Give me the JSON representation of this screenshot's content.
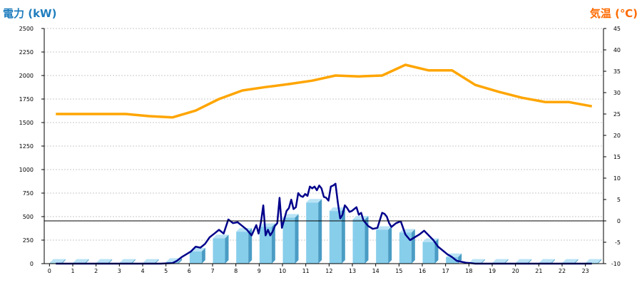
{
  "chart_data": {
    "type": "bar",
    "title": "",
    "left_axis": {
      "label": "電力 (kW)",
      "ylim": [
        0,
        2500
      ],
      "ticks": [
        "0",
        "250",
        "500",
        "750",
        "1000",
        "1250",
        "1500",
        "1750",
        "2000",
        "2250",
        "2500"
      ]
    },
    "right_axis": {
      "label": "気温 (℃)",
      "ylim": [
        -10,
        45
      ],
      "ticks": [
        "-10",
        "-5",
        "0",
        "5",
        "10",
        "15",
        "20",
        "25",
        "30",
        "35",
        "40",
        "45"
      ]
    },
    "categories": [
      "0",
      "1",
      "2",
      "3",
      "4",
      "5",
      "6",
      "7",
      "8",
      "9",
      "10",
      "11",
      "12",
      "13",
      "14",
      "15",
      "16",
      "17",
      "18",
      "19",
      "20",
      "21",
      "22",
      "23"
    ],
    "grid": true,
    "series": [
      {
        "type": "bar",
        "axis": "left",
        "values": [
          10,
          10,
          10,
          10,
          10,
          20,
          130,
          270,
          340,
          390,
          490,
          650,
          560,
          470,
          360,
          330,
          230,
          70,
          10,
          10,
          10,
          10,
          10,
          10
        ]
      },
      {
        "type": "line",
        "axis": "right",
        "values": [
          25.0,
          25.0,
          25.0,
          25.0,
          24.5,
          24.2,
          25.8,
          28.5,
          30.5,
          31.3,
          32.0,
          32.8,
          34.0,
          33.8,
          34.0,
          36.5,
          35.2,
          35.2,
          31.8,
          30.2,
          28.8,
          27.8,
          27.8,
          26.8
        ]
      },
      {
        "type": "line",
        "axis": "left",
        "x": [
          0,
          0.5,
          1,
          1.5,
          2,
          2.5,
          3,
          3.5,
          4,
          4.5,
          5,
          5.2,
          5.4,
          5.6,
          5.8,
          6,
          6.2,
          6.4,
          6.6,
          6.8,
          7,
          7.2,
          7.4,
          7.6,
          7.8,
          8,
          8.2,
          8.4,
          8.6,
          8.7,
          8.8,
          8.9,
          9,
          9.1,
          9.2,
          9.3,
          9.4,
          9.5,
          9.6,
          9.7,
          9.8,
          9.9,
          10,
          10.1,
          10.2,
          10.3,
          10.4,
          10.5,
          10.6,
          10.7,
          10.8,
          10.9,
          11,
          11.1,
          11.2,
          11.3,
          11.4,
          11.5,
          11.6,
          11.7,
          11.8,
          11.9,
          12,
          12.1,
          12.2,
          12.3,
          12.4,
          12.5,
          12.6,
          12.7,
          12.8,
          12.9,
          13,
          13.1,
          13.2,
          13.4,
          13.6,
          13.8,
          14,
          14.1,
          14.2,
          14.3,
          14.4,
          14.6,
          14.8,
          15,
          15.2,
          15.4,
          15.6,
          15.8,
          16,
          16.2,
          16.4,
          16.6,
          16.8,
          17,
          17.2,
          17.4,
          17.6,
          17.8,
          18,
          18.5,
          19,
          19.5,
          20,
          20.5,
          21,
          21.5,
          22,
          22.5,
          23
        ],
        "values": [
          0,
          0,
          0,
          0,
          0,
          0,
          0,
          0,
          0,
          0,
          5,
          30,
          70,
          100,
          130,
          180,
          170,
          210,
          280,
          320,
          360,
          320,
          470,
          430,
          440,
          400,
          360,
          300,
          410,
          320,
          440,
          620,
          300,
          360,
          300,
          340,
          400,
          430,
          700,
          380,
          470,
          560,
          590,
          680,
          580,
          600,
          750,
          720,
          710,
          740,
          720,
          820,
          800,
          820,
          780,
          830,
          800,
          710,
          700,
          670,
          820,
          830,
          850,
          650,
          480,
          520,
          620,
          590,
          550,
          560,
          580,
          600,
          520,
          540,
          460,
          400,
          370,
          380,
          540,
          530,
          500,
          430,
          390,
          430,
          450,
          310,
          250,
          280,
          310,
          350,
          300,
          250,
          180,
          140,
          100,
          70,
          30,
          20,
          10,
          5,
          0,
          0,
          0,
          0,
          0,
          0,
          0,
          0,
          0,
          0,
          0
        ]
      }
    ],
    "colors": {
      "bar": "#87ceeb",
      "bar_side": "#4a9cc4",
      "bar_top": "#b9e3f5",
      "temperature": "#ffa500",
      "power_line": "#00008b"
    }
  }
}
